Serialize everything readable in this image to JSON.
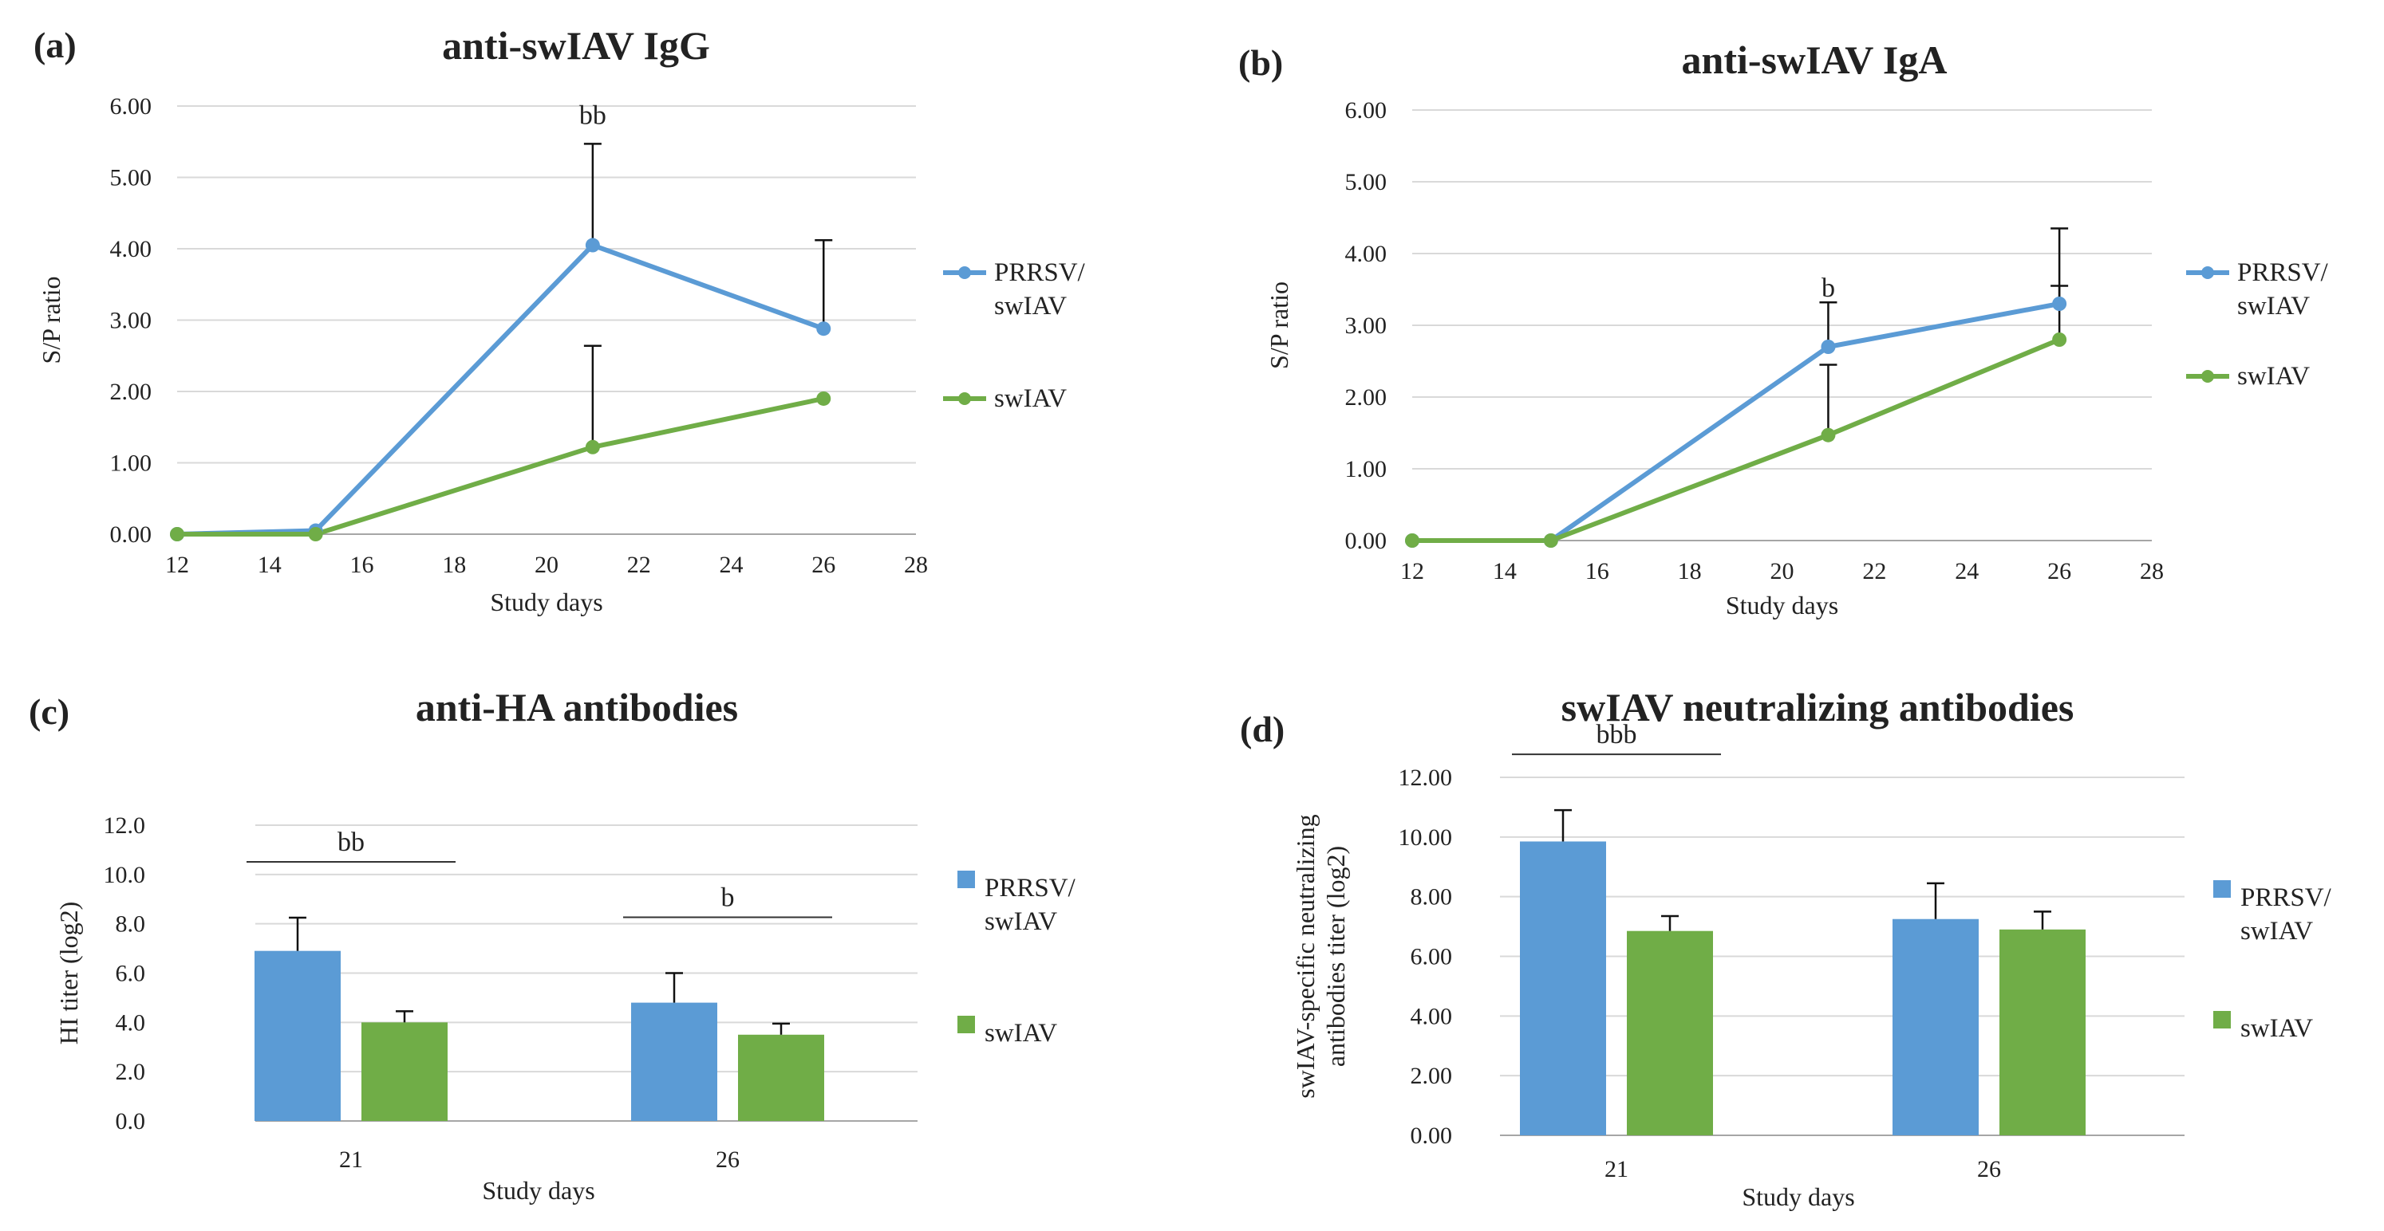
{
  "colors": {
    "prrsv": "#5b9bd5",
    "swiav": "#70ad47"
  },
  "chart_data": [
    {
      "id": "a",
      "type": "line",
      "panel_label": "(a)",
      "title": "anti-swIAV IgG",
      "xlabel": "Study days",
      "ylabel": "S/P ratio",
      "xlim": [
        12,
        28
      ],
      "ylim": [
        0,
        6
      ],
      "xticks": [
        12,
        14,
        16,
        18,
        20,
        22,
        24,
        26,
        28
      ],
      "xtick_labels": [
        "12",
        "14",
        "16",
        "18",
        "20",
        "22",
        "24",
        "26",
        "28"
      ],
      "yticks": [
        0,
        1,
        2,
        3,
        4,
        5,
        6
      ],
      "ytick_labels": [
        "0.00",
        "1.00",
        "2.00",
        "3.00",
        "4.00",
        "5.00",
        "6.00"
      ],
      "series": [
        {
          "name": "PRRSV/ swIAV",
          "legend_lines": [
            "PRRSV/",
            "swIAV"
          ],
          "color_key": "prrsv",
          "x": [
            12,
            15,
            21,
            26
          ],
          "y": [
            0.0,
            0.05,
            4.05,
            2.88
          ],
          "err": [
            0,
            0,
            1.42,
            1.24
          ]
        },
        {
          "name": "swIAV",
          "legend_lines": [
            "swIAV"
          ],
          "color_key": "swiav",
          "x": [
            12,
            15,
            21,
            26
          ],
          "y": [
            0.0,
            0.0,
            1.22,
            1.9
          ],
          "err": [
            0,
            0,
            1.42,
            0
          ]
        }
      ],
      "annotations": [
        {
          "text": "bb",
          "x": 21,
          "y": 5.75
        }
      ]
    },
    {
      "id": "b",
      "type": "line",
      "panel_label": "(b)",
      "title": "anti-swIAV IgA",
      "xlabel": "Study days",
      "ylabel": "S/P ratio",
      "xlim": [
        12,
        28
      ],
      "ylim": [
        0,
        6
      ],
      "xticks": [
        12,
        14,
        16,
        18,
        20,
        22,
        24,
        26,
        28
      ],
      "xtick_labels": [
        "12",
        "14",
        "16",
        "18",
        "20",
        "22",
        "24",
        "26",
        "28"
      ],
      "yticks": [
        0,
        1,
        2,
        3,
        4,
        5,
        6
      ],
      "ytick_labels": [
        "0.00",
        "1.00",
        "2.00",
        "3.00",
        "4.00",
        "5.00",
        "6.00"
      ],
      "series": [
        {
          "name": "PRRSV/ swIAV",
          "legend_lines": [
            "PRRSV/",
            "swIAV"
          ],
          "color_key": "prrsv",
          "x": [
            12,
            15,
            21,
            26
          ],
          "y": [
            0.0,
            0.0,
            2.7,
            3.3
          ],
          "err": [
            0,
            0,
            0.62,
            1.05
          ]
        },
        {
          "name": "swIAV",
          "legend_lines": [
            "swIAV"
          ],
          "color_key": "swiav",
          "x": [
            12,
            15,
            21,
            26
          ],
          "y": [
            0.0,
            0.0,
            1.47,
            2.8
          ],
          "err": [
            0,
            0,
            0.98,
            0.75
          ]
        }
      ],
      "annotations": [
        {
          "text": "b",
          "x": 21,
          "y": 3.4
        }
      ]
    },
    {
      "id": "c",
      "type": "bar",
      "panel_label": "(c)",
      "title": "anti-HA antibodies",
      "xlabel": "Study days",
      "ylabel": "HI titer (log2)",
      "ylim": [
        0,
        12
      ],
      "yticks": [
        0,
        2,
        4,
        6,
        8,
        10,
        12
      ],
      "ytick_labels": [
        "0.0",
        "2.0",
        "4.0",
        "6.0",
        "8.0",
        "10.0",
        "12.0"
      ],
      "categories": [
        "21",
        "26"
      ],
      "series": [
        {
          "name": "PRRSV/ swIAV",
          "legend_lines": [
            "PRRSV/",
            "swIAV"
          ],
          "color_key": "prrsv",
          "values": [
            6.9,
            4.8
          ],
          "err": [
            1.35,
            1.2
          ]
        },
        {
          "name": "swIAV",
          "legend_lines": [
            "swIAV"
          ],
          "color_key": "swiav",
          "values": [
            4.0,
            3.5
          ],
          "err": [
            0.45,
            0.45
          ]
        }
      ],
      "significance": [
        {
          "text": "bb",
          "category": 0
        },
        {
          "text": "b",
          "category": 1
        }
      ]
    },
    {
      "id": "d",
      "type": "bar",
      "panel_label": "(d)",
      "title": "swIAV neutralizing antibodies",
      "xlabel": "Study days",
      "ylabel_lines": [
        "swIAV-specific neutralizing",
        "antibodies titer (log2)"
      ],
      "ylim": [
        0,
        12
      ],
      "yticks": [
        0,
        2,
        4,
        6,
        8,
        10,
        12
      ],
      "ytick_labels": [
        "0.00",
        "2.00",
        "4.00",
        "6.00",
        "8.00",
        "10.00",
        "12.00"
      ],
      "categories": [
        "21",
        "26"
      ],
      "series": [
        {
          "name": "PRRSV/ swIAV",
          "legend_lines": [
            "PRRSV/",
            "swIAV"
          ],
          "color_key": "prrsv",
          "values": [
            9.85,
            7.25
          ],
          "err": [
            1.05,
            1.2
          ]
        },
        {
          "name": "swIAV",
          "legend_lines": [
            "swIAV"
          ],
          "color_key": "swiav",
          "values": [
            6.85,
            6.9
          ],
          "err": [
            0.5,
            0.6
          ]
        }
      ],
      "significance": [
        {
          "text": "bbb",
          "category": 0
        }
      ]
    }
  ]
}
